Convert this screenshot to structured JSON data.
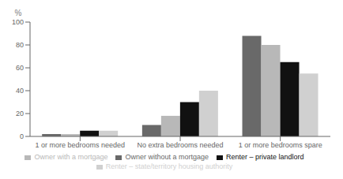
{
  "chart_data": {
    "type": "bar",
    "ylabel": "%",
    "categories": [
      "1 or more bedrooms needed",
      "No extra bedrooms needed",
      "1 or more bedrooms spare"
    ],
    "series": [
      {
        "name": "Owner without a mortgage",
        "color": "#696969",
        "values": [
          2,
          10,
          88
        ]
      },
      {
        "name": "Owner with a mortgage",
        "color": "#b8b8b8",
        "values": [
          2,
          18,
          80
        ]
      },
      {
        "name": "Renter – private landlord",
        "color": "#111111",
        "values": [
          5,
          30,
          65
        ]
      },
      {
        "name": "Renter – state/territory housing authority",
        "color": "#d0d0d0",
        "values": [
          5,
          40,
          55
        ]
      }
    ],
    "ylim": [
      0,
      100
    ],
    "yticks": [
      0,
      20,
      40,
      60,
      80,
      100
    ],
    "grid": false,
    "legend": "bottom"
  }
}
